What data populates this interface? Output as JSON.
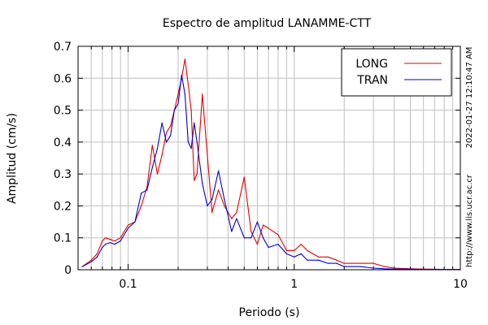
{
  "chart_data": {
    "type": "line",
    "title": "Espectro de amplitud LANAMME-CTT",
    "xlabel": "Periodo (s)",
    "ylabel": "Amplitud (cm/s)",
    "xscale": "log",
    "xlim": [
      0.05,
      10
    ],
    "ylim": [
      0,
      0.7
    ],
    "x_ticks": [
      {
        "value": 0.1,
        "label": "0.1"
      },
      {
        "value": 1,
        "label": "1"
      },
      {
        "value": 10,
        "label": "10"
      }
    ],
    "y_ticks": [
      {
        "value": 0,
        "label": "0"
      },
      {
        "value": 0.1,
        "label": "0.1"
      },
      {
        "value": 0.2,
        "label": "0.2"
      },
      {
        "value": 0.3,
        "label": "0.3"
      },
      {
        "value": 0.4,
        "label": "0.4"
      },
      {
        "value": 0.5,
        "label": "0.5"
      },
      {
        "value": 0.6,
        "label": "0.6"
      },
      {
        "value": 0.7,
        "label": "0.7"
      }
    ],
    "grid": true,
    "legend_position": "top-right",
    "series": [
      {
        "name": "LONG",
        "color": "#e00000",
        "x": [
          0.053,
          0.06,
          0.065,
          0.07,
          0.073,
          0.078,
          0.083,
          0.09,
          0.1,
          0.11,
          0.12,
          0.13,
          0.14,
          0.15,
          0.16,
          0.17,
          0.18,
          0.19,
          0.2,
          0.21,
          0.22,
          0.23,
          0.24,
          0.25,
          0.26,
          0.28,
          0.3,
          0.32,
          0.35,
          0.38,
          0.42,
          0.45,
          0.5,
          0.55,
          0.6,
          0.65,
          0.7,
          0.8,
          0.9,
          1.0,
          1.1,
          1.2,
          1.4,
          1.6,
          1.8,
          2.0,
          2.5,
          3.0,
          3.5,
          4.0,
          5.0,
          6.0,
          8.0,
          10.0
        ],
        "y": [
          0.01,
          0.03,
          0.05,
          0.09,
          0.1,
          0.095,
          0.09,
          0.1,
          0.14,
          0.15,
          0.2,
          0.26,
          0.39,
          0.3,
          0.36,
          0.43,
          0.45,
          0.5,
          0.55,
          0.6,
          0.66,
          0.58,
          0.5,
          0.28,
          0.3,
          0.55,
          0.36,
          0.18,
          0.25,
          0.2,
          0.16,
          0.18,
          0.29,
          0.12,
          0.08,
          0.14,
          0.13,
          0.11,
          0.06,
          0.06,
          0.08,
          0.06,
          0.04,
          0.04,
          0.03,
          0.02,
          0.02,
          0.02,
          0.01,
          0.005,
          0.003,
          0.002,
          0.001,
          0.001
        ]
      },
      {
        "name": "TRAN",
        "color": "#0000cc",
        "x": [
          0.053,
          0.06,
          0.065,
          0.07,
          0.073,
          0.078,
          0.083,
          0.09,
          0.1,
          0.11,
          0.12,
          0.13,
          0.14,
          0.15,
          0.16,
          0.17,
          0.18,
          0.19,
          0.2,
          0.21,
          0.22,
          0.23,
          0.24,
          0.25,
          0.26,
          0.28,
          0.3,
          0.32,
          0.35,
          0.38,
          0.42,
          0.45,
          0.5,
          0.55,
          0.6,
          0.65,
          0.7,
          0.8,
          0.9,
          1.0,
          1.1,
          1.2,
          1.4,
          1.6,
          1.8,
          2.0,
          2.5,
          3.0,
          3.5,
          4.0,
          5.0,
          6.0,
          8.0,
          10.0
        ],
        "y": [
          0.01,
          0.025,
          0.04,
          0.07,
          0.08,
          0.085,
          0.08,
          0.09,
          0.13,
          0.15,
          0.24,
          0.25,
          0.32,
          0.38,
          0.46,
          0.4,
          0.42,
          0.5,
          0.52,
          0.61,
          0.55,
          0.4,
          0.38,
          0.46,
          0.4,
          0.27,
          0.2,
          0.22,
          0.31,
          0.22,
          0.12,
          0.16,
          0.1,
          0.1,
          0.15,
          0.1,
          0.07,
          0.08,
          0.05,
          0.04,
          0.05,
          0.03,
          0.03,
          0.02,
          0.02,
          0.01,
          0.01,
          0.005,
          0.003,
          0.002,
          0.002,
          0.001,
          0.001,
          0.001
        ]
      }
    ]
  },
  "side_texts": {
    "timestamp": "2022-01-27 12:10:47 AM",
    "url": "http://www.lis.ucr.ac.cr"
  }
}
